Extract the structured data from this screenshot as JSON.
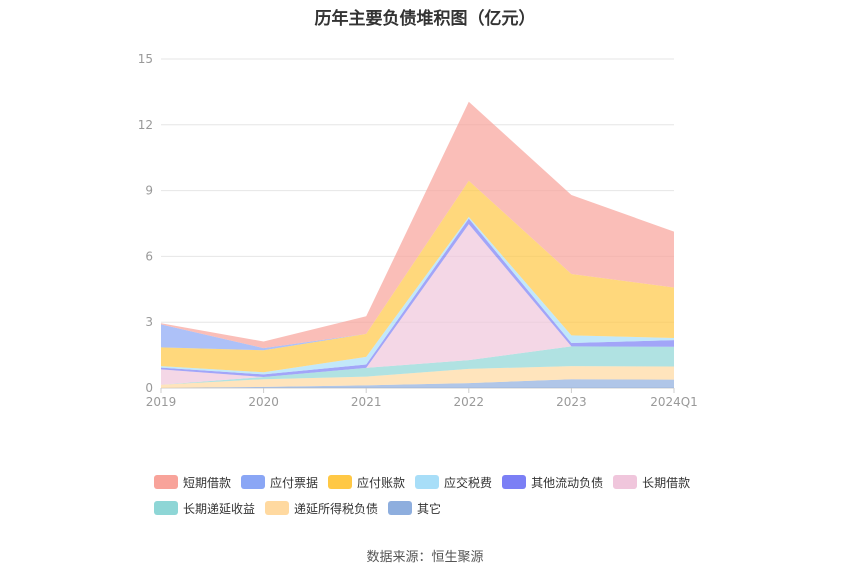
{
  "title": "历年主要负债堆积图（亿元）",
  "source": "数据来源：恒生聚源",
  "chart_data": {
    "type": "area",
    "stacked": true,
    "x": [
      "2019",
      "2020",
      "2021",
      "2022",
      "2023",
      "2024Q1"
    ],
    "ylim": [
      0,
      15
    ],
    "yticks": [
      0,
      3,
      6,
      9,
      12,
      15
    ],
    "grid": true,
    "legend_position": "bottom",
    "series": [
      {
        "name": "其它",
        "color": "#8eaede",
        "values": [
          0.0,
          0.05,
          0.12,
          0.22,
          0.4,
          0.38
        ]
      },
      {
        "name": "递延所得税负债",
        "color": "#ffd9a0",
        "values": [
          0.15,
          0.35,
          0.4,
          0.65,
          0.6,
          0.6
        ]
      },
      {
        "name": "长期递延收益",
        "color": "#8ed6d6",
        "values": [
          0.0,
          0.1,
          0.4,
          0.4,
          0.9,
          0.9
        ]
      },
      {
        "name": "长期借款",
        "color": "#f0c6dc",
        "values": [
          0.7,
          0.0,
          0.0,
          6.2,
          0.0,
          0.0
        ]
      },
      {
        "name": "其他流动负债",
        "color": "#7b7ff5",
        "values": [
          0.08,
          0.12,
          0.15,
          0.25,
          0.15,
          0.3
        ]
      },
      {
        "name": "应交税费",
        "color": "#a8def8",
        "values": [
          0.07,
          0.1,
          0.35,
          0.08,
          0.35,
          0.1
        ]
      },
      {
        "name": "应付账款",
        "color": "#ffc845",
        "values": [
          0.85,
          1.0,
          1.05,
          1.65,
          2.8,
          2.3
        ]
      },
      {
        "name": "应付票据",
        "color": "#8aa6f5",
        "values": [
          1.05,
          0.1,
          0.0,
          0.0,
          0.0,
          0.0
        ]
      },
      {
        "name": "短期借款",
        "color": "#f8a39a",
        "values": [
          0.05,
          0.3,
          0.8,
          3.6,
          3.6,
          2.55
        ]
      }
    ]
  },
  "legend_rows": [
    [
      {
        "name": "短期借款",
        "color": "#f8a39a"
      },
      {
        "name": "应付票据",
        "color": "#8aa6f5"
      },
      {
        "name": "应付账款",
        "color": "#ffc845"
      },
      {
        "name": "应交税费",
        "color": "#a8def8"
      },
      {
        "name": "其他流动负债",
        "color": "#7b7ff5"
      },
      {
        "name": "长期借款",
        "color": "#f0c6dc"
      }
    ],
    [
      {
        "name": "长期递延收益",
        "color": "#8ed6d6"
      },
      {
        "name": "递延所得税负债",
        "color": "#ffd9a0"
      },
      {
        "name": "其它",
        "color": "#8eaede"
      }
    ]
  ]
}
